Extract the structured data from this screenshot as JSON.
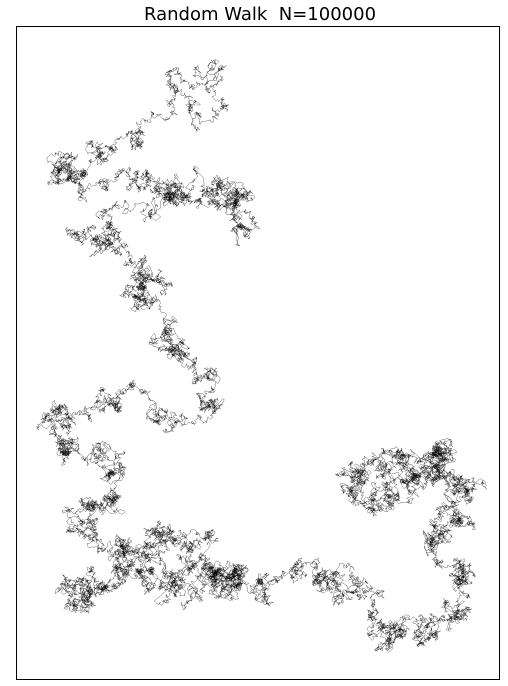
{
  "chart_data": {
    "type": "line",
    "title": "Random Walk  N=100000",
    "xlabel": "",
    "ylabel": "",
    "grid": false,
    "axes_ticks": false,
    "legend": "none",
    "line_color": "#000000",
    "steps": 100000,
    "series": [
      {
        "values_note_x": [],
        "waypoints_x": [
          175,
          205,
          190,
          165,
          130,
          100,
          70,
          50,
          80,
          120,
          150,
          175,
          200,
          215,
          235,
          255,
          245,
          215,
          180,
          150,
          110,
          80,
          100,
          125,
          140,
          130,
          150,
          165,
          180,
          195,
          210,
          200,
          175,
          150,
          120,
          90,
          60,
          50,
          70,
          95,
          115,
          120,
          110,
          90,
          80,
          95,
          120,
          140,
          160,
          170,
          185,
          200,
          215,
          230,
          240,
          225,
          200,
          175,
          150,
          120,
          95,
          80,
          85,
          105,
          130,
          160,
          190,
          215,
          240,
          265,
          295,
          320,
          340,
          355,
          370,
          385,
          400,
          420,
          440,
          455,
          465,
          460,
          440,
          430,
          445,
          460,
          470,
          460,
          440,
          420,
          400,
          380,
          360,
          355,
          370,
          390,
          405,
          420,
          435,
          445,
          440,
          420,
          400
        ],
        "waypoints_y": [
          70,
          85,
          105,
          120,
          135,
          150,
          165,
          180,
          175,
          170,
          175,
          185,
          195,
          205,
          215,
          220,
          200,
          185,
          190,
          205,
          220,
          235,
          250,
          260,
          270,
          285,
          300,
          320,
          340,
          360,
          380,
          400,
          410,
          405,
          410,
          420,
          415,
          430,
          445,
          455,
          465,
          480,
          495,
          505,
          520,
          535,
          545,
          550,
          540,
          530,
          545,
          555,
          565,
          575,
          585,
          580,
          575,
          580,
          570,
          575,
          580,
          590,
          600,
          585,
          575,
          580,
          570,
          580,
          585,
          575,
          570,
          575,
          580,
          595,
          610,
          625,
          635,
          640,
          630,
          615,
          595,
          575,
          560,
          545,
          530,
          515,
          500,
          485,
          475,
          470,
          460,
          465,
          475,
          490,
          500,
          490,
          475,
          460,
          450,
          440,
          455,
          470,
          480
        ]
      }
    ]
  }
}
